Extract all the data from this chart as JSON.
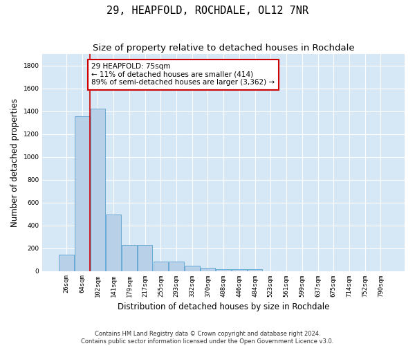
{
  "title": "29, HEAPFOLD, ROCHDALE, OL12 7NR",
  "subtitle": "Size of property relative to detached houses in Rochdale",
  "xlabel": "Distribution of detached houses by size in Rochdale",
  "ylabel": "Number of detached properties",
  "bar_labels": [
    "26sqm",
    "64sqm",
    "102sqm",
    "141sqm",
    "179sqm",
    "217sqm",
    "255sqm",
    "293sqm",
    "332sqm",
    "370sqm",
    "408sqm",
    "446sqm",
    "484sqm",
    "523sqm",
    "561sqm",
    "599sqm",
    "637sqm",
    "675sqm",
    "714sqm",
    "752sqm",
    "790sqm"
  ],
  "bar_values": [
    140,
    1355,
    1420,
    495,
    230,
    225,
    85,
    80,
    45,
    30,
    18,
    15,
    13,
    0,
    0,
    0,
    0,
    0,
    0,
    0,
    0
  ],
  "bar_color": "#b8d0e8",
  "bar_edge_color": "#6aaad4",
  "plot_bg_color": "#d6e8f5",
  "fig_bg_color": "#ffffff",
  "grid_color": "#ffffff",
  "red_line_x": 1.5,
  "annotation_text": "29 HEAPFOLD: 75sqm\n← 11% of detached houses are smaller (414)\n89% of semi-detached houses are larger (3,362) →",
  "annotation_box_color": "#ffffff",
  "annotation_box_edge_color": "#cc0000",
  "ylim": [
    0,
    1900
  ],
  "yticks": [
    0,
    200,
    400,
    600,
    800,
    1000,
    1200,
    1400,
    1600,
    1800
  ],
  "footnote": "Contains HM Land Registry data © Crown copyright and database right 2024.\nContains public sector information licensed under the Open Government Licence v3.0.",
  "title_fontsize": 11,
  "subtitle_fontsize": 9.5,
  "ylabel_fontsize": 8.5,
  "xlabel_fontsize": 8.5,
  "tick_fontsize": 6.5,
  "footnote_fontsize": 6,
  "annot_fontsize": 7.5
}
